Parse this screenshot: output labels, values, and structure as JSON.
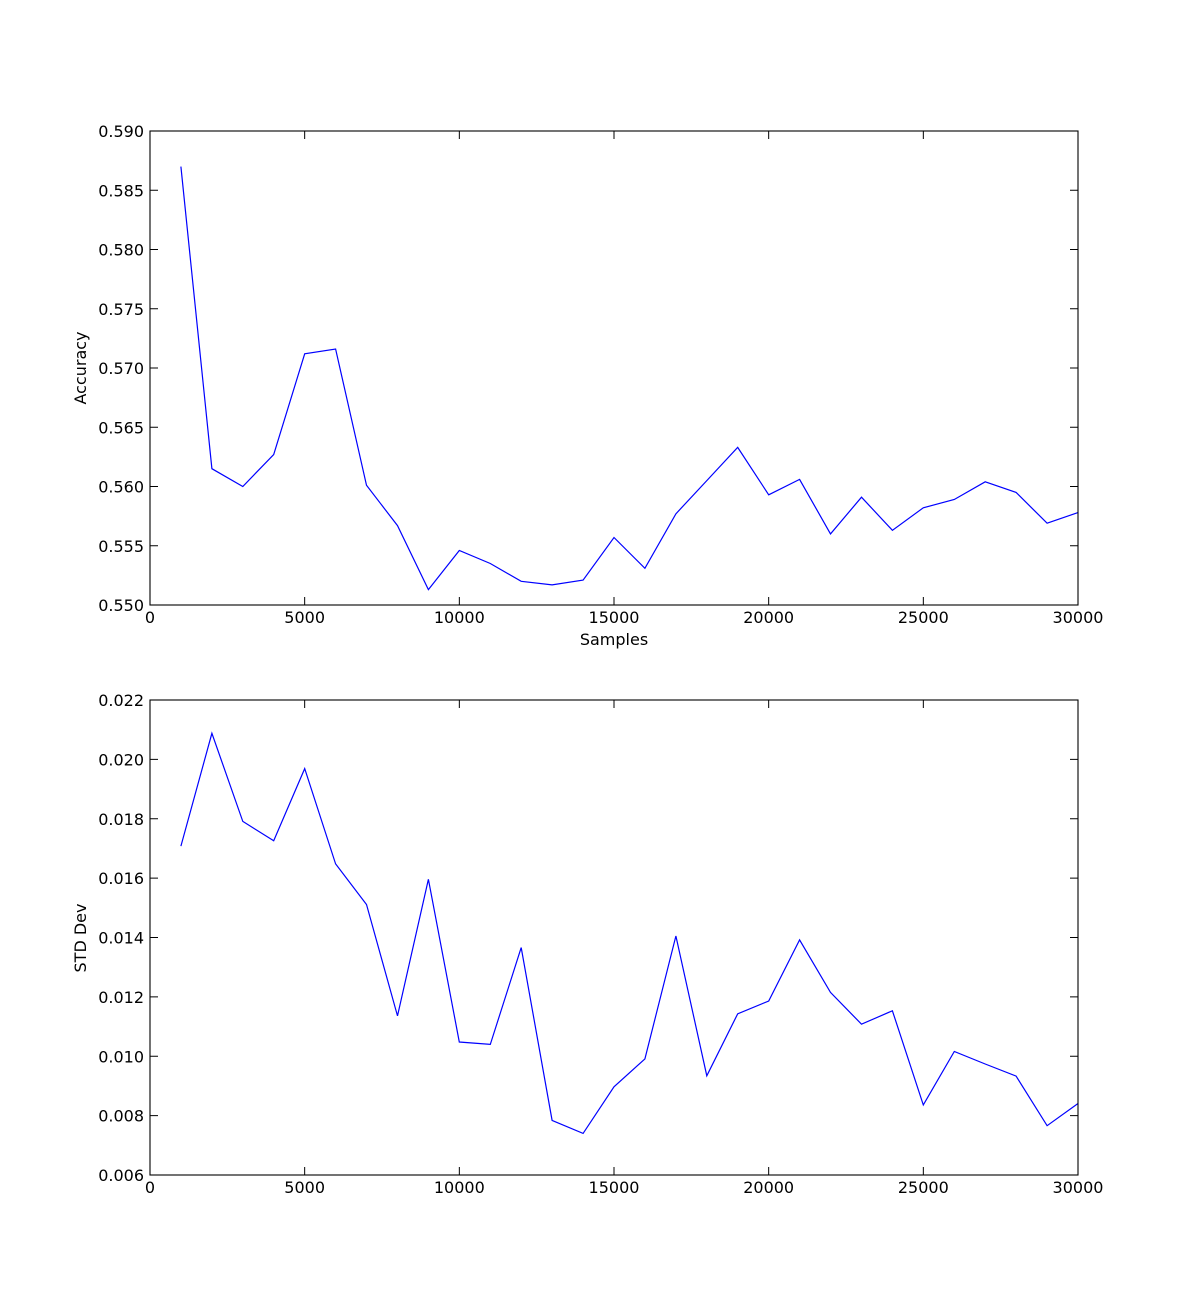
{
  "chart_data": [
    {
      "type": "line",
      "title": "",
      "xlabel": "Samples",
      "ylabel": "Accuracy",
      "xlim": [
        0,
        30000
      ],
      "ylim": [
        0.55,
        0.59
      ],
      "xticks": [
        0,
        5000,
        10000,
        15000,
        20000,
        25000,
        30000
      ],
      "xtick_labels": [
        "0",
        "5000",
        "10000",
        "15000",
        "20000",
        "25000",
        "30000"
      ],
      "yticks": [
        0.55,
        0.555,
        0.56,
        0.565,
        0.57,
        0.575,
        0.58,
        0.585,
        0.59
      ],
      "ytick_labels": [
        "0.550",
        "0.555",
        "0.560",
        "0.565",
        "0.570",
        "0.575",
        "0.580",
        "0.585",
        "0.590"
      ],
      "grid": false,
      "line_color": "#0000ff",
      "series": [
        {
          "x": [
            1000,
            2000,
            3000,
            4000,
            5000,
            6000,
            7000,
            8000,
            9000,
            10000,
            11000,
            12000,
            13000,
            14000,
            15000,
            16000,
            17000,
            18000,
            19000,
            20000,
            21000,
            22000,
            23000,
            24000,
            25000,
            26000,
            27000,
            28000,
            29000,
            30000
          ],
          "values": [
            0.587,
            0.5615,
            0.56,
            0.5627,
            0.5712,
            0.5716,
            0.5601,
            0.5567,
            0.5513,
            0.5546,
            0.5535,
            0.552,
            0.5517,
            0.5521,
            0.5557,
            0.5531,
            0.5577,
            0.5605,
            0.5633,
            0.5593,
            0.5606,
            0.556,
            0.5591,
            0.5563,
            0.5582,
            0.5589,
            0.5604,
            0.5595,
            0.5569,
            0.5578
          ]
        }
      ]
    },
    {
      "type": "line",
      "title": "",
      "xlabel": "",
      "ylabel": "STD Dev",
      "xlim": [
        0,
        30000
      ],
      "ylim": [
        0.006,
        0.022
      ],
      "xticks": [
        0,
        5000,
        10000,
        15000,
        20000,
        25000,
        30000
      ],
      "xtick_labels": [
        "0",
        "5000",
        "10000",
        "15000",
        "20000",
        "25000",
        "30000"
      ],
      "yticks": [
        0.006,
        0.008,
        0.01,
        0.012,
        0.014,
        0.016,
        0.018,
        0.02,
        0.022
      ],
      "ytick_labels": [
        "0.006",
        "0.008",
        "0.010",
        "0.012",
        "0.014",
        "0.016",
        "0.018",
        "0.020",
        "0.022"
      ],
      "grid": false,
      "line_color": "#0000ff",
      "series": [
        {
          "x": [
            1000,
            2000,
            3000,
            4000,
            5000,
            6000,
            7000,
            8000,
            9000,
            10000,
            11000,
            12000,
            13000,
            14000,
            15000,
            16000,
            17000,
            18000,
            19000,
            20000,
            21000,
            22000,
            23000,
            24000,
            25000,
            26000,
            27000,
            28000,
            29000,
            30000
          ],
          "values": [
            0.01708,
            0.02088,
            0.01791,
            0.01726,
            0.01969,
            0.01648,
            0.01511,
            0.01136,
            0.01596,
            0.01048,
            0.0104,
            0.01366,
            0.00784,
            0.0074,
            0.00897,
            0.00991,
            0.01405,
            0.00934,
            0.01143,
            0.01186,
            0.01392,
            0.01215,
            0.01108,
            0.01153,
            0.00836,
            0.01016,
            0.00974,
            0.00933,
            0.00766,
            0.00841
          ]
        }
      ]
    }
  ]
}
